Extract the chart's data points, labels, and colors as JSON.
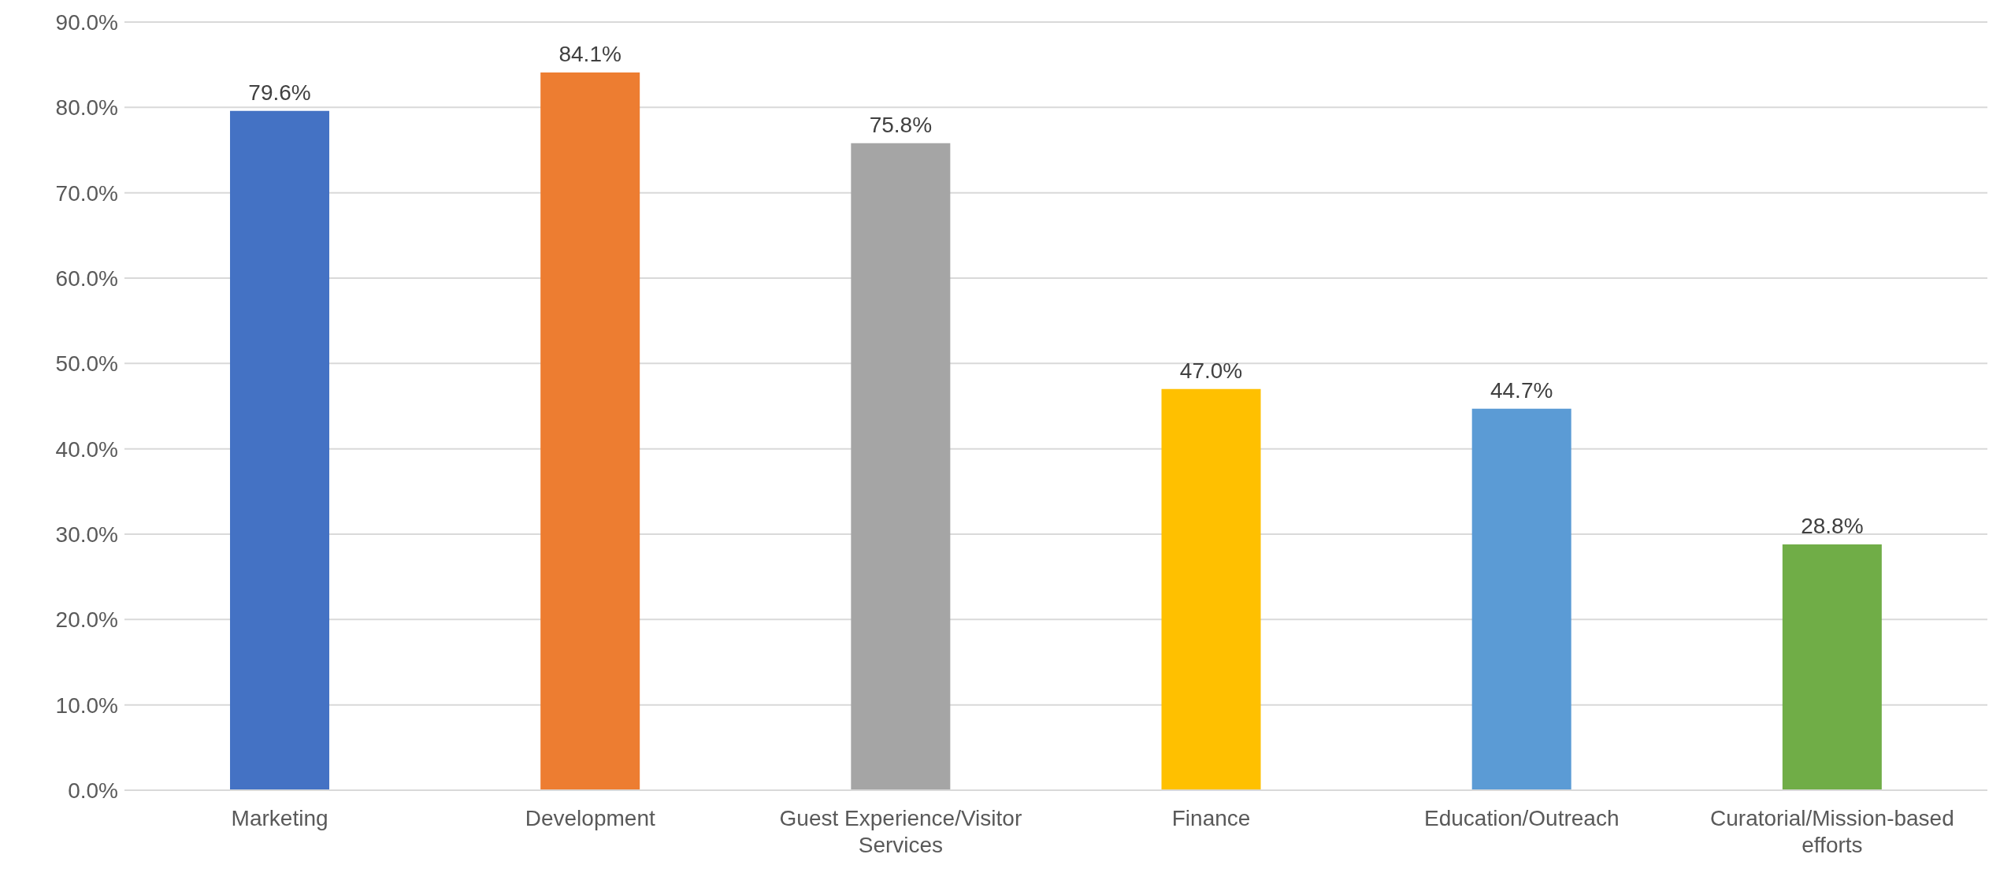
{
  "chart_data": {
    "type": "bar",
    "categories": [
      "Marketing",
      "Development",
      "Guest Experience/Visitor Services",
      "Finance",
      "Education/Outreach",
      "Curatorial/Mission-based efforts"
    ],
    "values": [
      79.6,
      84.1,
      75.8,
      47.0,
      44.7,
      28.8
    ],
    "colors": [
      "#4472c4",
      "#ed7d31",
      "#a5a5a5",
      "#ffc000",
      "#5b9bd5",
      "#70ad47"
    ],
    "value_labels": [
      "79.6%",
      "84.1%",
      "75.8%",
      "47.0%",
      "44.7%",
      "28.8%"
    ],
    "ylim": [
      0,
      90
    ],
    "yticks": [
      {
        "value": 0,
        "label": "0.0%"
      },
      {
        "value": 10,
        "label": "10.0%"
      },
      {
        "value": 20,
        "label": "20.0%"
      },
      {
        "value": 30,
        "label": "30.0%"
      },
      {
        "value": 40,
        "label": "40.0%"
      },
      {
        "value": 50,
        "label": "50.0%"
      },
      {
        "value": 60,
        "label": "60.0%"
      },
      {
        "value": 70,
        "label": "70.0%"
      },
      {
        "value": 80,
        "label": "80.0%"
      },
      {
        "value": 90,
        "label": "90.0%"
      }
    ],
    "grid": "y",
    "legend": false
  }
}
